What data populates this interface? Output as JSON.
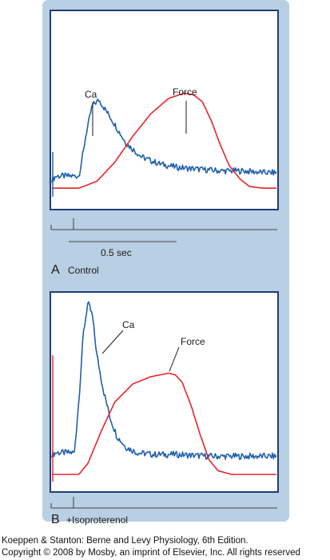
{
  "colors": {
    "calcium": "#1f5fae",
    "force": "#e8242c",
    "frame": "#1f3e74",
    "panel": "#b9cfe3"
  },
  "scale_bar": {
    "label": "0.5 sec",
    "seconds": 0.5
  },
  "credit": {
    "line1": "Koeppen & Stanton: Berne and Levy Physiology, 6th Edition.",
    "line2": "Copyright © 2008 by Mosby, an imprint of Elsevier, Inc. All rights reserved"
  },
  "chart_data": [
    {
      "type": "line",
      "panel": "A",
      "condition": "Control",
      "title": "",
      "xlabel": "",
      "ylabel": "",
      "series": [
        {
          "name": "Ca",
          "color": "#1f5fae",
          "x": [
            0.0,
            0.02,
            0.12,
            0.14,
            0.15,
            0.18,
            0.21,
            0.27,
            0.33,
            0.4,
            0.48,
            0.56,
            0.65,
            0.75,
            0.85,
            0.95,
            1.0
          ],
          "y": [
            0.1,
            0.12,
            0.12,
            0.26,
            0.35,
            0.53,
            0.56,
            0.44,
            0.31,
            0.23,
            0.19,
            0.17,
            0.16,
            0.15,
            0.15,
            0.14,
            0.14
          ]
        },
        {
          "name": "Force",
          "color": "#e8242c",
          "x": [
            0.0,
            0.12,
            0.2,
            0.28,
            0.36,
            0.44,
            0.52,
            0.59,
            0.63,
            0.67,
            0.71,
            0.75,
            0.79,
            0.84,
            0.88,
            0.94,
            1.0
          ],
          "y": [
            0.05,
            0.05,
            0.09,
            0.2,
            0.35,
            0.48,
            0.57,
            0.6,
            0.59,
            0.55,
            0.44,
            0.3,
            0.18,
            0.1,
            0.06,
            0.05,
            0.05
          ]
        }
      ],
      "annotations": [
        "Ca",
        "Force"
      ]
    },
    {
      "type": "line",
      "panel": "B",
      "condition": "+Isoproterenol",
      "title": "",
      "xlabel": "",
      "ylabel": "",
      "series": [
        {
          "name": "Ca",
          "color": "#1f5fae",
          "x": [
            0.0,
            0.02,
            0.1,
            0.12,
            0.14,
            0.16,
            0.18,
            0.2,
            0.23,
            0.26,
            0.29,
            0.33,
            0.38,
            0.45,
            0.55,
            0.7,
            0.85,
            1.0
          ],
          "y": [
            0.15,
            0.16,
            0.16,
            0.45,
            0.82,
            0.99,
            0.92,
            0.7,
            0.5,
            0.35,
            0.25,
            0.19,
            0.16,
            0.15,
            0.15,
            0.14,
            0.14,
            0.14
          ]
        },
        {
          "name": "Force",
          "color": "#e8242c",
          "x": [
            0.0,
            0.12,
            0.16,
            0.22,
            0.28,
            0.36,
            0.44,
            0.52,
            0.55,
            0.58,
            0.62,
            0.66,
            0.7,
            0.74,
            0.8,
            0.88,
            1.0
          ],
          "y": [
            0.04,
            0.04,
            0.1,
            0.28,
            0.44,
            0.54,
            0.58,
            0.6,
            0.59,
            0.55,
            0.42,
            0.26,
            0.12,
            0.06,
            0.04,
            0.04,
            0.04
          ]
        }
      ],
      "annotations": [
        "Ca",
        "Force"
      ]
    }
  ]
}
